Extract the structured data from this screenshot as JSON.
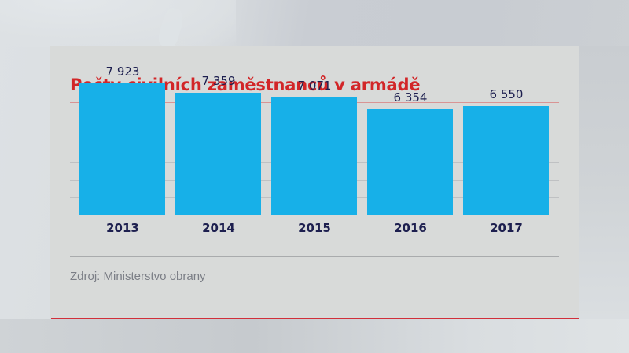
{
  "title": "Počty civilních zaměstnanců v armádě",
  "source": "Zdroj: Ministerstvo obrany",
  "colors": {
    "title": "#d22628",
    "bar": "#17b0e8",
    "label": "#1d1f4f",
    "accent_rule": "#d12f3a"
  },
  "chart_data": {
    "type": "bar",
    "title": "Počty civilních zaměstnanců v armádě",
    "categories": [
      "2013",
      "2014",
      "2015",
      "2016",
      "2017"
    ],
    "values": [
      7923,
      7359,
      7071,
      6354,
      6550
    ],
    "value_labels": [
      "7 923",
      "7 359",
      "7 071",
      "6 354",
      "6 550"
    ],
    "xlabel": "",
    "ylabel": "",
    "ylim": [
      0,
      8000
    ],
    "grid": true,
    "legend": "none",
    "source": "Zdroj: Ministerstvo obrany"
  },
  "bars": [
    {
      "year": "2013",
      "label": "7 923"
    },
    {
      "year": "2014",
      "label": "7 359"
    },
    {
      "year": "2015",
      "label": "7 071"
    },
    {
      "year": "2016",
      "label": "6 354"
    },
    {
      "year": "2017",
      "label": "6 550"
    }
  ]
}
